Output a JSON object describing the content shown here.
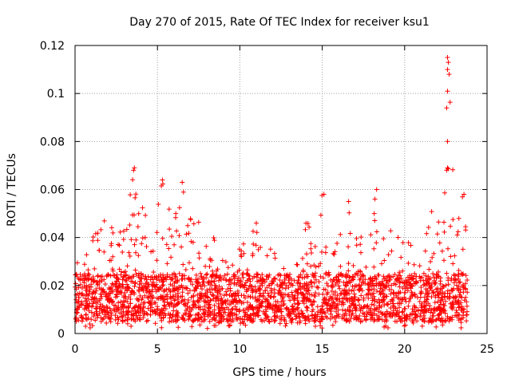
{
  "chart_data": {
    "type": "scatter",
    "title": "Day 270 of 2015, Rate Of TEC Index for receiver ksu1",
    "xlabel": "GPS time / hours",
    "ylabel": "ROTI / TECUs",
    "xlim": [
      0,
      25
    ],
    "ylim": [
      0,
      0.12
    ],
    "x_ticks": [
      0,
      5,
      10,
      15,
      20,
      25
    ],
    "x_tick_labels": [
      "0",
      "5",
      "10",
      "15",
      "20",
      "25"
    ],
    "y_ticks": [
      0,
      0.02,
      0.04,
      0.06,
      0.08,
      0.1,
      0.12
    ],
    "y_tick_labels": [
      "0",
      "0.02",
      "0.04",
      "0.06",
      "0.08",
      "0.1",
      "0.12"
    ],
    "grid": true,
    "marker": "+",
    "color": "#ff0000",
    "series": [
      {
        "name": "ROTI",
        "baseline": {
          "x_start": 0,
          "x_end": 23.8,
          "typical_min": 0.005,
          "typical_max": 0.025
        },
        "envelope": [
          [
            0.0,
            0.03
          ],
          [
            0.5,
            0.035
          ],
          [
            1.0,
            0.04
          ],
          [
            1.5,
            0.045
          ],
          [
            2.0,
            0.05
          ],
          [
            2.5,
            0.042
          ],
          [
            3.0,
            0.045
          ],
          [
            3.5,
            0.07
          ],
          [
            4.0,
            0.055
          ],
          [
            4.5,
            0.048
          ],
          [
            5.0,
            0.055
          ],
          [
            5.3,
            0.064
          ],
          [
            6.0,
            0.05
          ],
          [
            6.5,
            0.063
          ],
          [
            7.0,
            0.048
          ],
          [
            7.5,
            0.052
          ],
          [
            8.0,
            0.04
          ],
          [
            8.5,
            0.042
          ],
          [
            9.0,
            0.038
          ],
          [
            9.5,
            0.04
          ],
          [
            10.0,
            0.04
          ],
          [
            10.5,
            0.036
          ],
          [
            11.0,
            0.047
          ],
          [
            11.5,
            0.04
          ],
          [
            12.0,
            0.035
          ],
          [
            12.5,
            0.03
          ],
          [
            13.0,
            0.025
          ],
          [
            13.5,
            0.03
          ],
          [
            14.0,
            0.048
          ],
          [
            14.5,
            0.048
          ],
          [
            15.0,
            0.058
          ],
          [
            15.5,
            0.04
          ],
          [
            16.0,
            0.045
          ],
          [
            16.5,
            0.055
          ],
          [
            17.0,
            0.045
          ],
          [
            17.5,
            0.05
          ],
          [
            18.0,
            0.05
          ],
          [
            18.3,
            0.06
          ],
          [
            18.8,
            0.05
          ],
          [
            19.5,
            0.045
          ],
          [
            20.0,
            0.04
          ],
          [
            20.5,
            0.04
          ],
          [
            21.0,
            0.046
          ],
          [
            21.5,
            0.05
          ],
          [
            22.0,
            0.055
          ],
          [
            22.5,
            0.07
          ],
          [
            22.7,
            0.115
          ],
          [
            23.0,
            0.055
          ],
          [
            23.5,
            0.058
          ],
          [
            23.8,
            0.04
          ]
        ],
        "spike_points": [
          [
            22.6,
            0.115
          ],
          [
            22.65,
            0.113
          ],
          [
            22.6,
            0.11
          ],
          [
            22.7,
            0.108
          ],
          [
            22.6,
            0.101
          ],
          [
            22.55,
            0.094
          ],
          [
            22.6,
            0.08
          ],
          [
            22.55,
            0.068
          ],
          [
            22.6,
            0.069
          ],
          [
            3.6,
            0.069
          ],
          [
            3.55,
            0.068
          ],
          [
            5.3,
            0.064
          ],
          [
            6.5,
            0.063
          ],
          [
            18.3,
            0.06
          ],
          [
            15.1,
            0.058
          ],
          [
            18.2,
            0.056
          ],
          [
            23.6,
            0.058
          ],
          [
            11.0,
            0.046
          ],
          [
            16.6,
            0.055
          ]
        ]
      }
    ]
  }
}
